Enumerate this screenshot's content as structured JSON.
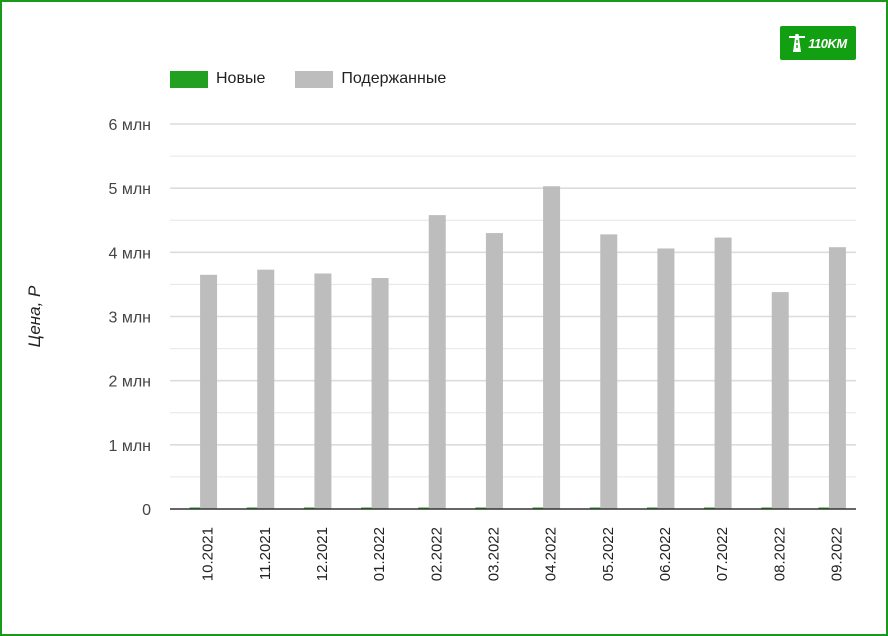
{
  "logo": {
    "text": "110KM"
  },
  "chart_data": {
    "type": "bar",
    "title": "",
    "xlabel": "",
    "ylabel": "Цена, Р",
    "categories": [
      "10.2021",
      "11.2021",
      "12.2021",
      "01.2022",
      "02.2022",
      "03.2022",
      "04.2022",
      "05.2022",
      "06.2022",
      "07.2022",
      "08.2022",
      "09.2022"
    ],
    "series": [
      {
        "name": "Новые",
        "color": "#22a022",
        "values": [
          0,
          0,
          0,
          0,
          0,
          0,
          0,
          0,
          0,
          0,
          0,
          0
        ]
      },
      {
        "name": "Подержанные",
        "color": "#bdbdbd",
        "values": [
          3.65,
          3.73,
          3.67,
          3.6,
          4.58,
          4.3,
          5.03,
          4.28,
          4.06,
          4.23,
          3.38,
          4.08
        ]
      }
    ],
    "ylim": [
      0,
      6
    ],
    "yticks": [
      {
        "value": 0,
        "label": "0"
      },
      {
        "value": 1,
        "label": "1 млн"
      },
      {
        "value": 2,
        "label": "2 млн"
      },
      {
        "value": 3,
        "label": "3 млн"
      },
      {
        "value": 4,
        "label": "4 млн"
      },
      {
        "value": 5,
        "label": "5 млн"
      },
      {
        "value": 6,
        "label": "6 млн"
      }
    ],
    "grid": true,
    "legend_position": "top-left",
    "gridline_color": "#e6e6e6",
    "axis_color": "#333333"
  }
}
